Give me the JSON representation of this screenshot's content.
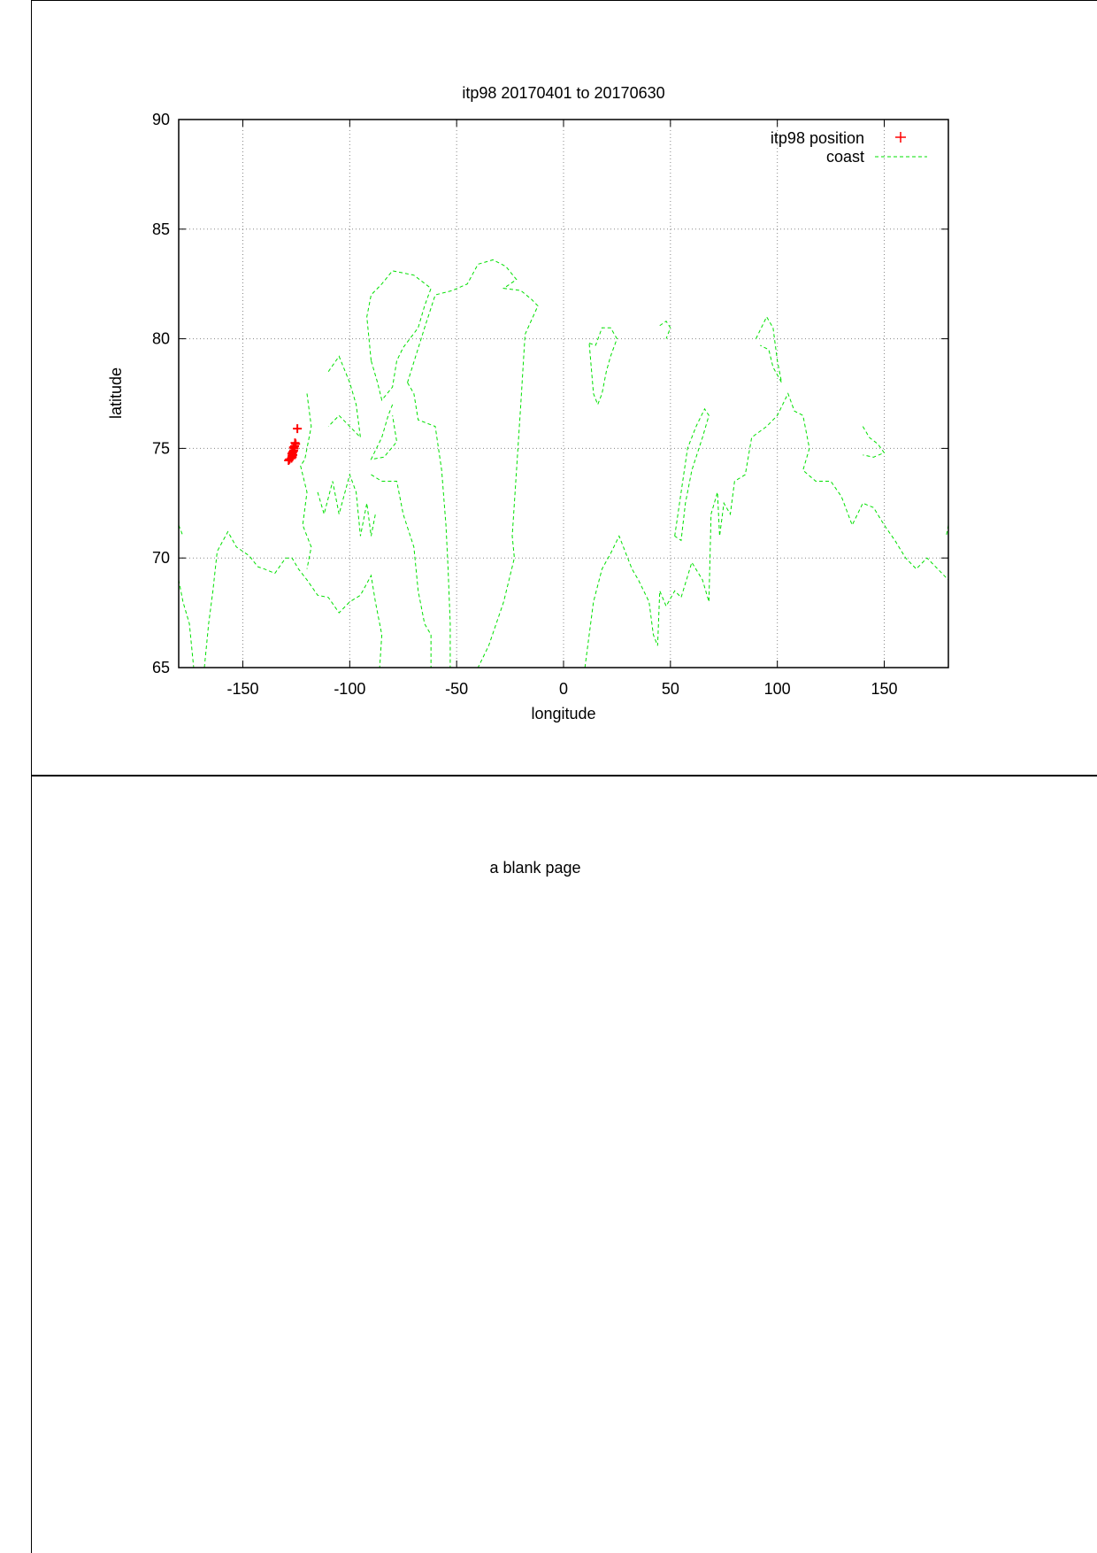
{
  "chart_data": {
    "type": "scatter",
    "title": "itp98 20170401 to 20170630",
    "xlabel": "longitude",
    "ylabel": "latitude",
    "xlim": [
      -180,
      180
    ],
    "ylim": [
      65,
      90
    ],
    "xticks": [
      -150,
      -100,
      -50,
      0,
      50,
      100,
      150
    ],
    "yticks": [
      65,
      70,
      75,
      80,
      85,
      90
    ],
    "grid": true,
    "legend": "top-right",
    "series": [
      {
        "name": "itp98 position",
        "style": "points",
        "marker": "plus",
        "color": "#ff0000",
        "points": [
          [
            -124.5,
            75.9
          ],
          [
            -125.3,
            75.2
          ],
          [
            -125.8,
            75.1
          ],
          [
            -126.0,
            75.0
          ],
          [
            -126.2,
            74.9
          ],
          [
            -126.5,
            74.85
          ],
          [
            -126.8,
            74.8
          ],
          [
            -126.6,
            74.7
          ],
          [
            -127.0,
            74.65
          ],
          [
            -126.9,
            74.6
          ],
          [
            -127.3,
            74.55
          ],
          [
            -128.2,
            74.5
          ],
          [
            -128.6,
            74.45
          ],
          [
            -125.6,
            75.25
          ],
          [
            -126.3,
            75.05
          ],
          [
            -127.1,
            74.75
          ]
        ]
      },
      {
        "name": "coast",
        "style": "dashed-lines",
        "color": "#00e000",
        "lines": [
          [
            [
              -73,
              78
            ],
            [
              -65,
              80.5
            ],
            [
              -60,
              82
            ],
            [
              -52,
              82.2
            ],
            [
              -45,
              82.5
            ],
            [
              -40,
              83.4
            ],
            [
              -33,
              83.6
            ],
            [
              -27,
              83.3
            ],
            [
              -22,
              82.7
            ],
            [
              -28,
              82.3
            ],
            [
              -20,
              82.2
            ],
            [
              -15,
              81.8
            ],
            [
              -12,
              81.5
            ],
            [
              -18,
              80.2
            ],
            [
              -20,
              77
            ],
            [
              -22,
              74
            ],
            [
              -24,
              71
            ],
            [
              -23,
              70
            ],
            [
              -28,
              68
            ],
            [
              -35,
              66
            ],
            [
              -40,
              65
            ]
          ],
          [
            [
              -73,
              78
            ],
            [
              -70,
              77.5
            ],
            [
              -68,
              76.3
            ],
            [
              -60,
              76
            ],
            [
              -57,
              74
            ],
            [
              -55,
              71.5
            ],
            [
              -54,
              69.5
            ],
            [
              -53,
              67
            ],
            [
              -53,
              65
            ]
          ],
          [
            [
              -90,
              79
            ],
            [
              -92,
              81
            ],
            [
              -90,
              82
            ],
            [
              -85,
              82.5
            ],
            [
              -80,
              83.1
            ],
            [
              -70,
              82.9
            ],
            [
              -62,
              82.3
            ],
            [
              -65,
              81.5
            ],
            [
              -68,
              80.5
            ],
            [
              -75,
              79.6
            ],
            [
              -78,
              79
            ],
            [
              -80,
              77.8
            ],
            [
              -85,
              77.2
            ],
            [
              -87,
              78
            ],
            [
              -90,
              79
            ]
          ],
          [
            [
              -80,
              77
            ],
            [
              -82,
              76.5
            ],
            [
              -85,
              75.5
            ],
            [
              -90,
              74.5
            ],
            [
              -84,
              74.6
            ],
            [
              -78,
              75.3
            ],
            [
              -80,
              76.5
            ]
          ],
          [
            [
              -90,
              73.8
            ],
            [
              -85,
              73.5
            ],
            [
              -78,
              73.5
            ],
            [
              -75,
              72
            ],
            [
              -70,
              70.5
            ],
            [
              -68,
              68.5
            ],
            [
              -65,
              67
            ],
            [
              -62,
              66.5
            ],
            [
              -62,
              65
            ]
          ],
          [
            [
              -120,
              77.5
            ],
            [
              -118,
              76
            ],
            [
              -121,
              74.5
            ],
            [
              -123,
              74.2
            ],
            [
              -120,
              73
            ],
            [
              -122,
              71.5
            ],
            [
              -118,
              70.5
            ],
            [
              -120,
              69.5
            ]
          ],
          [
            [
              -115,
              73
            ],
            [
              -112,
              72
            ],
            [
              -108,
              73.5
            ],
            [
              -105,
              72
            ],
            [
              -100,
              73.8
            ],
            [
              -97,
              73
            ],
            [
              -95,
              71
            ],
            [
              -92,
              72.5
            ],
            [
              -90,
              71
            ],
            [
              -88,
              72
            ]
          ],
          [
            [
              -110,
              78.5
            ],
            [
              -105,
              79.2
            ],
            [
              -100,
              78
            ],
            [
              -97,
              77
            ],
            [
              -95,
              75.5
            ],
            [
              -100,
              76
            ],
            [
              -105,
              76.5
            ],
            [
              -110,
              76
            ]
          ],
          [
            [
              -180,
              69
            ],
            [
              -178,
              68
            ],
            [
              -175,
              67
            ],
            [
              -173,
              65
            ]
          ],
          [
            [
              -168,
              65
            ],
            [
              -166,
              67
            ],
            [
              -164,
              68.5
            ],
            [
              -162,
              70.3
            ],
            [
              -157,
              71.2
            ],
            [
              -153,
              70.5
            ],
            [
              -147,
              70.1
            ],
            [
              -143,
              69.6
            ],
            [
              -140,
              69.5
            ],
            [
              -135,
              69.3
            ],
            [
              -130,
              70
            ],
            [
              -127,
              70
            ],
            [
              -124,
              69.5
            ],
            [
              -120,
              69
            ],
            [
              -115,
              68.3
            ],
            [
              -110,
              68.2
            ],
            [
              -105,
              67.5
            ],
            [
              -100,
              68
            ],
            [
              -95,
              68.3
            ],
            [
              -90,
              69.2
            ],
            [
              -88,
              68
            ],
            [
              -85,
              66.5
            ],
            [
              -86,
              65
            ]
          ],
          [
            [
              -180,
              71.5
            ],
            [
              -178,
              71
            ]
          ],
          [
            [
              12,
              79.8
            ],
            [
              15,
              79.7
            ],
            [
              18,
              80.5
            ],
            [
              22,
              80.5
            ],
            [
              25,
              80
            ],
            [
              22,
              79.2
            ],
            [
              20,
              78.5
            ],
            [
              18,
              77.5
            ],
            [
              16,
              77
            ],
            [
              14,
              77.5
            ],
            [
              12,
              79.8
            ]
          ],
          [
            [
              45,
              80.6
            ],
            [
              48,
              80.8
            ],
            [
              50,
              80.5
            ],
            [
              48,
              80
            ]
          ],
          [
            [
              10,
              65
            ],
            [
              14,
              68
            ],
            [
              18,
              69.5
            ],
            [
              22,
              70.2
            ],
            [
              26,
              71
            ],
            [
              28,
              70.5
            ],
            [
              32,
              69.5
            ],
            [
              35,
              69
            ],
            [
              40,
              68
            ],
            [
              42,
              66.5
            ],
            [
              44,
              66
            ],
            [
              45,
              68.5
            ],
            [
              48,
              67.8
            ],
            [
              52,
              68.5
            ],
            [
              55,
              68.2
            ],
            [
              60,
              69.8
            ],
            [
              65,
              69
            ],
            [
              68,
              68
            ],
            [
              69,
              72
            ],
            [
              72,
              73
            ],
            [
              73,
              71
            ],
            [
              75,
              72.5
            ],
            [
              78,
              72
            ],
            [
              80,
              73.5
            ],
            [
              85,
              73.8
            ],
            [
              88,
              75.5
            ],
            [
              95,
              76
            ],
            [
              100,
              76.5
            ],
            [
              105,
              77.5
            ],
            [
              108,
              76.7
            ],
            [
              112,
              76.5
            ],
            [
              115,
              75
            ],
            [
              112,
              74
            ],
            [
              118,
              73.5
            ],
            [
              125,
              73.5
            ],
            [
              130,
              72.8
            ],
            [
              135,
              71.5
            ],
            [
              140,
              72.5
            ],
            [
              145,
              72.3
            ],
            [
              150,
              71.5
            ],
            [
              155,
              70.8
            ],
            [
              160,
              70
            ],
            [
              165,
              69.5
            ],
            [
              170,
              70
            ],
            [
              175,
              69.5
            ],
            [
              180,
              69
            ]
          ],
          [
            [
              52,
              71
            ],
            [
              55,
              73
            ],
            [
              58,
              75
            ],
            [
              62,
              76
            ],
            [
              66,
              76.8
            ],
            [
              68,
              76.5
            ],
            [
              65,
              75.5
            ],
            [
              60,
              74
            ],
            [
              57,
              72.5
            ],
            [
              55,
              70.8
            ],
            [
              52,
              71
            ]
          ],
          [
            [
              90,
              80
            ],
            [
              95,
              81
            ],
            [
              98,
              80.5
            ],
            [
              100,
              79
            ],
            [
              102,
              78
            ],
            [
              98,
              78.7
            ],
            [
              96,
              79.5
            ],
            [
              92,
              79.7
            ]
          ],
          [
            [
              140,
              76
            ],
            [
              143,
              75.5
            ],
            [
              147,
              75.2
            ],
            [
              150,
              74.8
            ],
            [
              145,
              74.6
            ],
            [
              140,
              74.7
            ]
          ],
          [
            [
              180,
              71.5
            ],
            [
              179,
              71
            ]
          ]
        ]
      }
    ]
  },
  "page2": {
    "text": "a blank page"
  }
}
